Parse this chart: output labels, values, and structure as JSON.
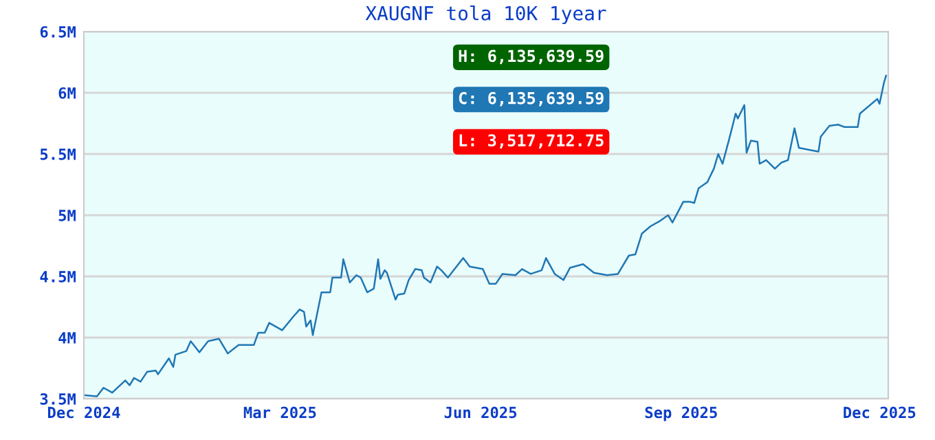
{
  "chart_data": {
    "type": "line",
    "title": "XAUGNF tola 10K 1year",
    "x": [
      "2024-12-01",
      "2024-12-07",
      "2024-12-10",
      "2024-12-14",
      "2024-12-20",
      "2024-12-22",
      "2024-12-24",
      "2024-12-27",
      "2024-12-30",
      "2025-01-03",
      "2025-01-04",
      "2025-01-09",
      "2025-01-11",
      "2025-01-12",
      "2025-01-17",
      "2025-01-19",
      "2025-01-23",
      "2025-01-27",
      "2025-02-01",
      "2025-02-05",
      "2025-02-10",
      "2025-02-17",
      "2025-02-19",
      "2025-02-22",
      "2025-02-24",
      "2025-03-02",
      "2025-03-07",
      "2025-03-10",
      "2025-03-12",
      "2025-03-13",
      "2025-03-15",
      "2025-03-16",
      "2025-03-20",
      "2025-03-24",
      "2025-03-25",
      "2025-03-29",
      "2025-03-30",
      "2025-04-02",
      "2025-04-05",
      "2025-04-07",
      "2025-04-10",
      "2025-04-13",
      "2025-04-15",
      "2025-04-16",
      "2025-04-18",
      "2025-04-19",
      "2025-04-23",
      "2025-04-24",
      "2025-04-27",
      "2025-04-29",
      "2025-05-02",
      "2025-05-05",
      "2025-05-06",
      "2025-05-09",
      "2025-05-12",
      "2025-05-14",
      "2025-05-17",
      "2025-05-24",
      "2025-05-27",
      "2025-06-02",
      "2025-06-05",
      "2025-06-08",
      "2025-06-11",
      "2025-06-17",
      "2025-06-20",
      "2025-06-24",
      "2025-06-29",
      "2025-07-01",
      "2025-07-05",
      "2025-07-09",
      "2025-07-12",
      "2025-07-18",
      "2025-07-23",
      "2025-07-29",
      "2025-08-03",
      "2025-08-08",
      "2025-08-11",
      "2025-08-14",
      "2025-08-18",
      "2025-08-22",
      "2025-08-26",
      "2025-08-28",
      "2025-09-02",
      "2025-09-05",
      "2025-09-07",
      "2025-09-09",
      "2025-09-13",
      "2025-09-16",
      "2025-09-18",
      "2025-09-20",
      "2025-09-23",
      "2025-09-26",
      "2025-09-27",
      "2025-09-30",
      "2025-10-01",
      "2025-10-03",
      "2025-10-06",
      "2025-10-07",
      "2025-10-10",
      "2025-10-14",
      "2025-10-17",
      "2025-10-20",
      "2025-10-23",
      "2025-10-25",
      "2025-10-31",
      "2025-11-03",
      "2025-11-04",
      "2025-11-08",
      "2025-11-12",
      "2025-11-15",
      "2025-11-21",
      "2025-11-22",
      "2025-11-30",
      "2025-12-01",
      "2025-12-03",
      "2025-12-04"
    ],
    "series": [
      {
        "color": "#1f77b4",
        "values": [
          3530000,
          3520000,
          3590000,
          3550000,
          3650000,
          3610000,
          3670000,
          3640000,
          3720000,
          3730000,
          3700000,
          3830000,
          3760000,
          3860000,
          3890000,
          3970000,
          3880000,
          3970000,
          3990000,
          3870000,
          3940000,
          3940000,
          4040000,
          4040000,
          4120000,
          4060000,
          4170000,
          4230000,
          4210000,
          4090000,
          4140000,
          4020000,
          4370000,
          4370000,
          4490000,
          4490000,
          4640000,
          4450000,
          4510000,
          4490000,
          4370000,
          4400000,
          4640000,
          4480000,
          4550000,
          4530000,
          4310000,
          4350000,
          4360000,
          4470000,
          4560000,
          4550000,
          4490000,
          4450000,
          4580000,
          4550000,
          4490000,
          4650000,
          4580000,
          4560000,
          4440000,
          4440000,
          4520000,
          4510000,
          4560000,
          4520000,
          4550000,
          4650000,
          4520000,
          4470000,
          4570000,
          4600000,
          4530000,
          4510000,
          4520000,
          4670000,
          4680000,
          4850000,
          4910000,
          4950000,
          5000000,
          4940000,
          5110000,
          5110000,
          5100000,
          5220000,
          5270000,
          5380000,
          5500000,
          5420000,
          5620000,
          5830000,
          5790000,
          5900000,
          5510000,
          5610000,
          5600000,
          5420000,
          5450000,
          5380000,
          5430000,
          5450000,
          5710000,
          5550000,
          5530000,
          5520000,
          5640000,
          5730000,
          5740000,
          5720000,
          5720000,
          5830000,
          5950000,
          5910000,
          6080000,
          6140000
        ]
      }
    ],
    "xlim": [
      "2024-12-01",
      "2025-12-05"
    ],
    "xticks": [
      {
        "value": "2024-12-01",
        "label": "Dec 2024"
      },
      {
        "value": "2025-03-01",
        "label": "Mar 2025"
      },
      {
        "value": "2025-06-01",
        "label": "Jun 2025"
      },
      {
        "value": "2025-09-01",
        "label": "Sep 2025"
      },
      {
        "value": "2025-12-01",
        "label": "Dec 2025"
      }
    ],
    "ylim": [
      3500000,
      6500000
    ],
    "yticks": [
      {
        "value": 3500000,
        "label": "3.5M"
      },
      {
        "value": 4000000,
        "label": "4M"
      },
      {
        "value": 4500000,
        "label": "4.5M"
      },
      {
        "value": 5000000,
        "label": "5M"
      },
      {
        "value": 5500000,
        "label": "5.5M"
      },
      {
        "value": 6000000,
        "label": "6M"
      },
      {
        "value": 6500000,
        "label": "6.5M"
      }
    ],
    "grid": "y",
    "legend": false,
    "marker": "none",
    "line_style": "solid",
    "annotations": [
      "H: 6,135,639.59",
      "C: 6,135,639.59",
      "L: 3,517,712.75"
    ]
  }
}
